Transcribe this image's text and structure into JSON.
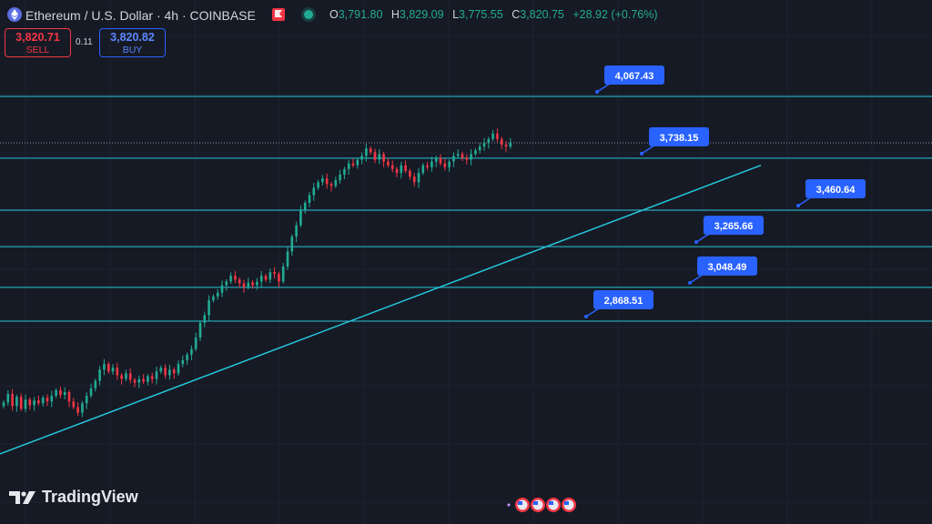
{
  "header": {
    "symbol_title": "Ethereum / U.S. Dollar · 4h · COINBASE",
    "ohlc": {
      "o_label": "O",
      "o_value": "3,791.80",
      "h_label": "H",
      "h_value": "3,829.09",
      "l_label": "L",
      "l_value": "3,775.55",
      "c_label": "C",
      "c_value": "3,820.75",
      "change": "+28.92 (+0.76%)"
    }
  },
  "trade": {
    "sell_price": "3,820.71",
    "sell_label": "SELL",
    "spread": "0.11",
    "buy_price": "3,820.82",
    "buy_label": "BUY"
  },
  "branding": {
    "logo_text": "TradingView"
  },
  "colors": {
    "background": "#161a25",
    "up": "#22ab94",
    "down": "#f23645",
    "level_line": "#26c6da",
    "label_bg": "#2962ff"
  },
  "chart_data": {
    "type": "candlestick",
    "price_levels": [
      {
        "value": 4067.43,
        "label": "4,067.43"
      },
      {
        "value": 3738.15,
        "label": "3,738.15"
      },
      {
        "value": 3460.64,
        "label": "3,460.64"
      },
      {
        "value": 3265.66,
        "label": "3,265.66"
      },
      {
        "value": 3048.49,
        "label": "3,048.49"
      },
      {
        "value": 2868.51,
        "label": "2,868.51"
      }
    ],
    "trendline": {
      "from_price": 2160,
      "to_price": 3700
    },
    "closes": [
      2435,
      2480,
      2415,
      2465,
      2400,
      2450,
      2420,
      2445,
      2430,
      2460,
      2440,
      2470,
      2500,
      2475,
      2490,
      2440,
      2410,
      2380,
      2430,
      2470,
      2510,
      2550,
      2610,
      2640,
      2600,
      2620,
      2580,
      2560,
      2590,
      2555,
      2540,
      2560,
      2545,
      2575,
      2560,
      2600,
      2620,
      2580,
      2610,
      2590,
      2640,
      2660,
      2690,
      2720,
      2780,
      2860,
      2900,
      2980,
      3000,
      3020,
      3060,
      3080,
      3110,
      3090,
      3070,
      3050,
      3075,
      3060,
      3080,
      3110,
      3090,
      3130,
      3120,
      3080,
      3160,
      3240,
      3320,
      3380,
      3460,
      3500,
      3540,
      3580,
      3610,
      3630,
      3600,
      3590,
      3620,
      3650,
      3680,
      3710,
      3700,
      3730,
      3750,
      3790,
      3770,
      3730,
      3760,
      3720,
      3700,
      3680,
      3660,
      3700,
      3670,
      3640,
      3610,
      3660,
      3700,
      3690,
      3720,
      3740,
      3710,
      3690,
      3720,
      3750,
      3760,
      3740,
      3730,
      3760,
      3780,
      3800,
      3820,
      3840,
      3870,
      3840,
      3810,
      3800,
      3820
    ]
  }
}
